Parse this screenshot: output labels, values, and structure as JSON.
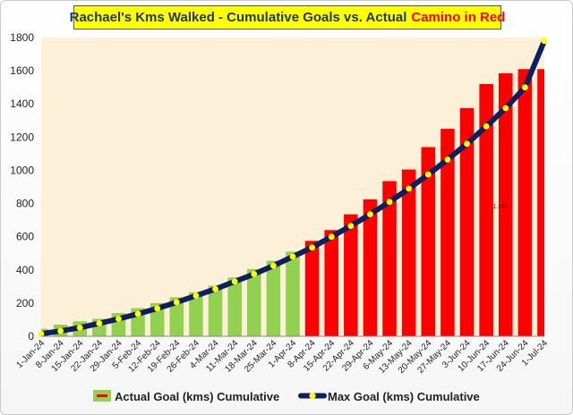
{
  "title": "Rachael's Kms Walked - Cumulative Goals vs. Actual",
  "title_accent": "Camino in Red",
  "chart_data": {
    "type": "bar",
    "categories": [
      "1-Jan-24",
      "8-Jan-24",
      "15-Jan-24",
      "22-Jan-24",
      "29-Jan-24",
      "5-Feb-24",
      "12-Feb-24",
      "19-Feb-24",
      "26-Feb-24",
      "4-Mar-24",
      "11-Mar-24",
      "18-Mar-24",
      "25-Mar-24",
      "1-Apr-24",
      "8-Apr-24",
      "15-Apr-24",
      "22-Apr-24",
      "29-Apr-24",
      "6-May-24",
      "13-May-24",
      "20-May-24",
      "27-May-24",
      "3-Jun-24",
      "10-Jun-24",
      "17-Jun-24",
      "24-Jun-24",
      "1-Jul-24"
    ],
    "ylim": [
      0,
      1800
    ],
    "yticks": [
      0,
      200,
      400,
      600,
      800,
      1000,
      1200,
      1400,
      1600,
      1800
    ],
    "series": [
      {
        "name": "Actual Goal (kms) Cumulative",
        "type": "bar",
        "values": [
          45,
          70,
          90,
          105,
          140,
          170,
          200,
          235,
          265,
          305,
          355,
          405,
          455,
          510,
          575,
          640,
          735,
          825,
          935,
          1005,
          1140,
          1250,
          1375,
          1520,
          1585,
          1610,
          1610
        ],
        "colors": [
          "#92d050",
          "#92d050",
          "#92d050",
          "#92d050",
          "#92d050",
          "#92d050",
          "#92d050",
          "#92d050",
          "#92d050",
          "#92d050",
          "#92d050",
          "#92d050",
          "#92d050",
          "#92d050",
          "#ff0000",
          "#ff0000",
          "#ff0000",
          "#ff0000",
          "#ff0000",
          "#ff0000",
          "#ff0000",
          "#ff0000",
          "#ff0000",
          "#ff0000",
          "#ff0000",
          "#ff0000",
          "#ff0000"
        ]
      },
      {
        "name": "Max Goal (kms) Cumulative",
        "type": "line",
        "values": [
          15,
          32,
          52,
          78,
          105,
          135,
          168,
          205,
          245,
          285,
          330,
          375,
          425,
          480,
          535,
          600,
          665,
          735,
          810,
          890,
          975,
          1065,
          1160,
          1265,
          1375,
          1500,
          1780
        ]
      }
    ],
    "annotation": "1.0%",
    "colors": {
      "green": "#92d050",
      "red": "#ff0000",
      "plot_bg": "#fdf0d8",
      "line": "#0d1f5c",
      "marker": "#ffff00"
    },
    "legend_position": "bottom",
    "grid": false
  }
}
